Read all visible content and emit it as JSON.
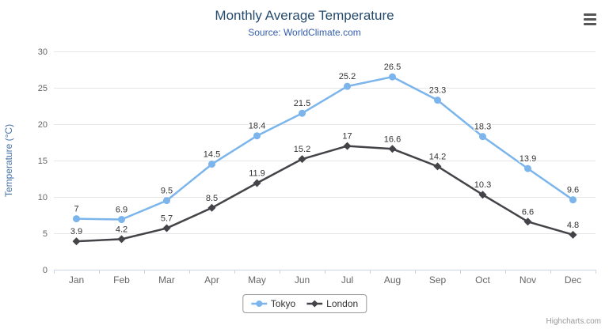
{
  "chart_data": {
    "type": "line",
    "title": "Monthly Average Temperature",
    "subtitle": "Source: WorldClimate.com",
    "xlabel": "",
    "ylabel": "Temperature (°C)",
    "ylim": [
      0,
      30
    ],
    "ytick_interval": 5,
    "grid": true,
    "legend_position": "bottom-center",
    "categories": [
      "Jan",
      "Feb",
      "Mar",
      "Apr",
      "May",
      "Jun",
      "Jul",
      "Aug",
      "Sep",
      "Oct",
      "Nov",
      "Dec"
    ],
    "series": [
      {
        "name": "Tokyo",
        "color": "#7cb5ec",
        "marker": "circle",
        "values": [
          7,
          6.9,
          9.5,
          14.5,
          18.4,
          21.5,
          25.2,
          26.5,
          23.3,
          18.3,
          13.9,
          9.6
        ]
      },
      {
        "name": "London",
        "color": "#434348",
        "marker": "diamond",
        "values": [
          3.9,
          4.2,
          5.7,
          8.5,
          11.9,
          15.2,
          17,
          16.6,
          14.2,
          10.3,
          6.6,
          4.8
        ]
      }
    ]
  },
  "colors": {
    "title": "#274b6d",
    "subtitle": "#335cad",
    "yaxis_title": "#4572a7",
    "tick_label": "#666666",
    "data_label": "#333333",
    "gridline": "#e6e6e6",
    "axis_line": "#ccd6eb",
    "legend_border": "#999999",
    "credits": "#999999"
  },
  "icons": {
    "context_menu": "hamburger-icon"
  },
  "credits": {
    "label": "Highcharts.com"
  }
}
